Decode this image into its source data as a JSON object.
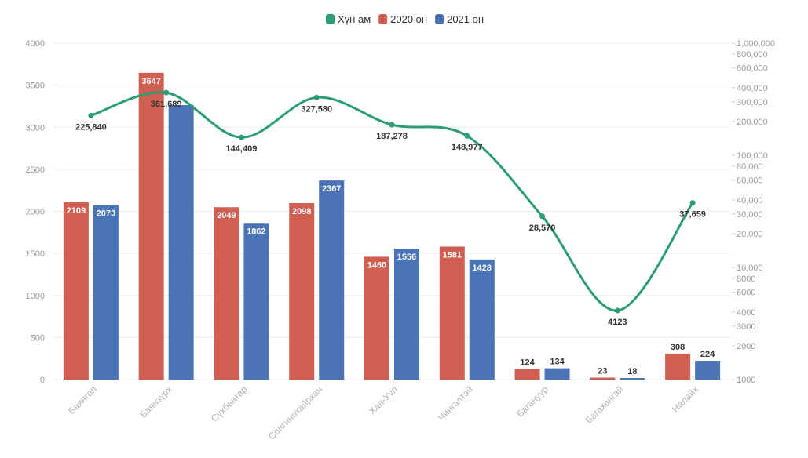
{
  "chart_data": {
    "type": "bar",
    "categories": [
      "Баянгол",
      "Баянзүрх",
      "Сүхбаатар",
      "Сонгинохайрхан",
      "Хан-Уул",
      "Чингэлтэй",
      "Багануур",
      "Багахангай",
      "Налайх"
    ],
    "series": [
      {
        "name": "Хүн ам",
        "type": "line",
        "axis": "right",
        "color": "#2a9d72",
        "values": [
          225840,
          361689,
          144409,
          327580,
          187278,
          148977,
          28570,
          4123,
          37659
        ],
        "labels": [
          "225,840",
          "361,689",
          "144,409",
          "327,580",
          "187,278",
          "148,977",
          "28,570",
          "4123",
          "37,659"
        ]
      },
      {
        "name": "2020 он",
        "type": "bar",
        "axis": "left",
        "color": "#d15f51",
        "values": [
          2109,
          3647,
          2049,
          2098,
          1460,
          1581,
          124,
          23,
          308
        ],
        "labels": [
          "2109",
          "3647",
          "2049",
          "2098",
          "1460",
          "1581",
          "124",
          "23",
          "308"
        ]
      },
      {
        "name": "2021 он",
        "type": "bar",
        "axis": "left",
        "color": "#4a74b5",
        "values": [
          2073,
          3263,
          1862,
          2367,
          1556,
          1428,
          134,
          18,
          224
        ],
        "labels": [
          "2073",
          "",
          "1862",
          "2367",
          "1556",
          "1428",
          "134",
          "18",
          "224"
        ]
      }
    ],
    "left_axis": {
      "ylim": [
        0,
        4000
      ],
      "ticks": [
        0,
        500,
        1000,
        1500,
        2000,
        2500,
        3000,
        3500,
        4000
      ],
      "tick_labels": [
        "0",
        "500",
        "1000",
        "1500",
        "2000",
        "2500",
        "3000",
        "3500",
        "4000"
      ]
    },
    "right_axis": {
      "scale": "log",
      "ylim": [
        1000,
        1000000
      ],
      "ticks": [
        1000,
        2000,
        3000,
        4000,
        6000,
        8000,
        10000,
        20000,
        30000,
        40000,
        60000,
        80000,
        100000,
        200000,
        300000,
        400000,
        600000,
        800000,
        1000000
      ],
      "tick_labels": [
        "1000",
        "2000",
        "3000",
        "4000",
        "6000",
        "8000",
        "10,000",
        "20,000",
        "30,000",
        "40,000",
        "60,000",
        "80,000",
        "100,000",
        "200,000",
        "300,000",
        "400,000",
        "600,000",
        "800,000",
        "1,000,000"
      ]
    },
    "legend": "top-center",
    "grid": true
  }
}
